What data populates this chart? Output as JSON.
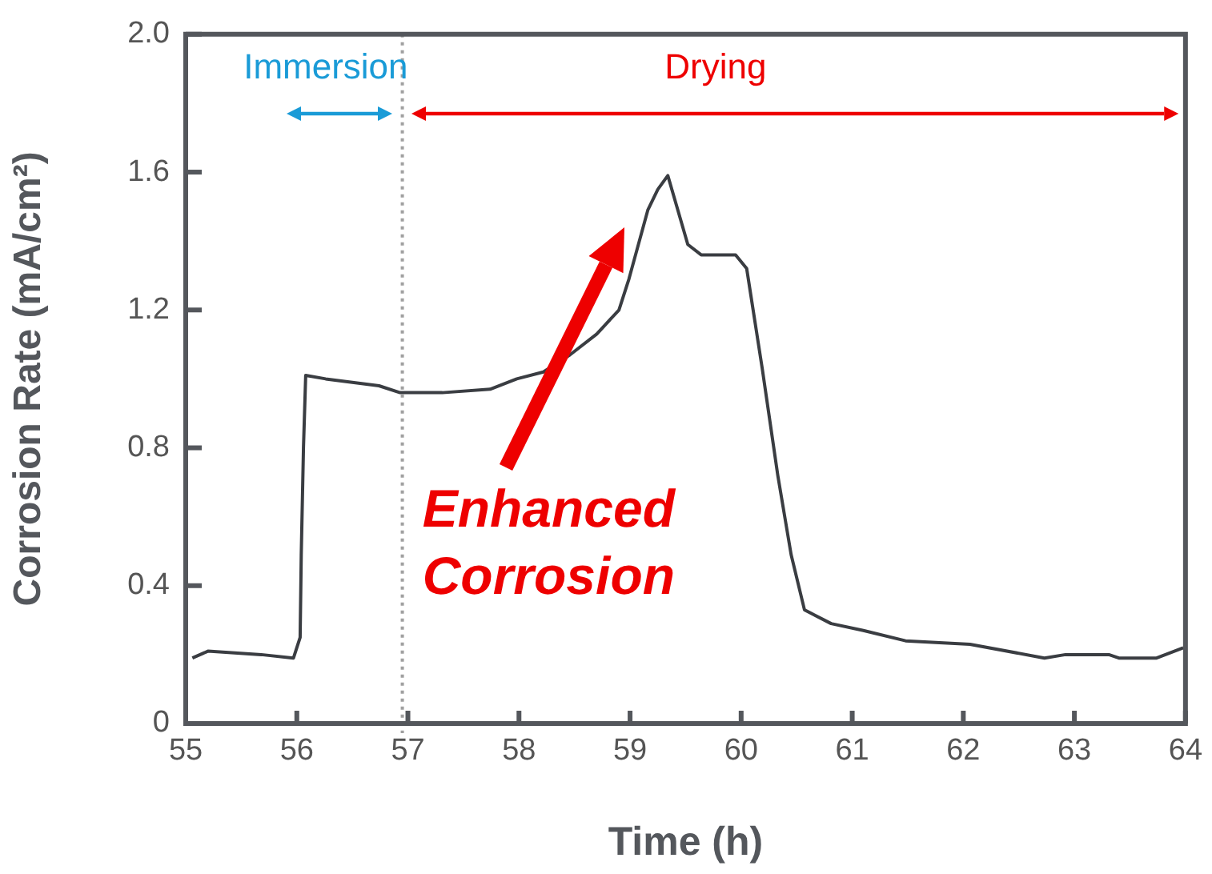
{
  "chart_data": {
    "type": "line",
    "xlabel": "Time (h)",
    "ylabel": "Corrosion Rate (mA/cm²)",
    "xlim": [
      55,
      64
    ],
    "xticks": [
      55,
      56,
      57,
      58,
      59,
      60,
      61,
      62,
      63,
      64
    ],
    "ylim": [
      0,
      2
    ],
    "yticks": [
      0,
      0.4,
      0.8,
      1.2,
      1.6,
      {
        "value": 2,
        "label": "2.0"
      }
    ],
    "grid": false,
    "legend": false,
    "marker": "none",
    "line_style": "solid",
    "series": [
      {
        "color": "#3a3d42",
        "x": [
          55.06,
          55.2,
          55.68,
          55.97,
          56.03,
          56.04,
          56.06,
          56.08,
          56.26,
          56.74,
          56.93,
          57.31,
          57.74,
          57.98,
          58.22,
          58.46,
          58.7,
          58.9,
          58.99,
          59.16,
          59.25,
          59.34,
          59.52,
          59.64,
          59.95,
          60.05,
          60.19,
          60.33,
          60.45,
          60.57,
          60.81,
          61.1,
          61.48,
          62.06,
          62.73,
          62.92,
          63.31,
          63.4,
          63.74,
          63.98
        ],
        "values": [
          0.19,
          0.21,
          0.2,
          0.19,
          0.25,
          0.49,
          0.8,
          1.01,
          1.0,
          0.98,
          0.96,
          0.96,
          0.97,
          1.0,
          1.02,
          1.07,
          1.13,
          1.2,
          1.29,
          1.49,
          1.55,
          1.59,
          1.39,
          1.36,
          1.36,
          1.32,
          1.03,
          0.72,
          0.49,
          0.33,
          0.29,
          0.27,
          0.24,
          0.23,
          0.19,
          0.2,
          0.2,
          0.19,
          0.19,
          0.22
        ]
      }
    ],
    "ref_lines": [
      {
        "axis": "x",
        "value": 56.95,
        "color": "#a0a0a0",
        "line_style": "dotted"
      }
    ],
    "annotations": [
      "Immersion",
      "Drying",
      "Enhanced Corrosion"
    ]
  }
}
